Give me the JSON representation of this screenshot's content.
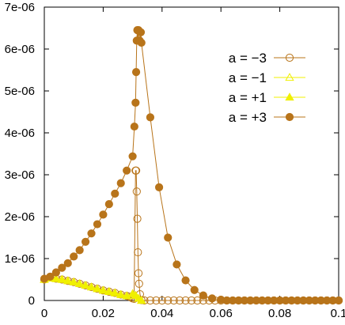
{
  "chart_data": {
    "type": "line",
    "title": "",
    "xlabel": "",
    "ylabel": "",
    "xlim": [
      0,
      0.1
    ],
    "ylim": [
      0,
      7e-06
    ],
    "xticks": [
      0,
      0.02,
      0.04,
      0.06,
      0.08,
      0.1
    ],
    "xtick_labels": [
      "0",
      "0.02",
      "0.04",
      "0.06",
      "0.08",
      "0.1"
    ],
    "yticks": [
      0,
      1e-06,
      2e-06,
      3e-06,
      4e-06,
      5e-06,
      6e-06,
      7e-06
    ],
    "ytick_labels": [
      "0",
      "1e-06",
      "2e-06",
      "3e-06",
      "4e-06",
      "5e-06",
      "6e-06",
      "7e-06"
    ],
    "grid": false,
    "legend_position": "top-right",
    "colors": {
      "dark": "#b8741a",
      "light": "#f0f000",
      "axis": "#000000"
    },
    "series": [
      {
        "name": "a = −3",
        "marker": "open-circle",
        "color": "#b8741a",
        "x": [
          0.0,
          0.002,
          0.004,
          0.006,
          0.008,
          0.01,
          0.012,
          0.014,
          0.016,
          0.018,
          0.02,
          0.022,
          0.024,
          0.026,
          0.028,
          0.029,
          0.0295,
          0.03,
          0.0305,
          0.031,
          0.0312,
          0.0314,
          0.0316,
          0.0318,
          0.032,
          0.0322,
          0.0325,
          0.033,
          0.034,
          0.036,
          0.038,
          0.04,
          0.042,
          0.044,
          0.046,
          0.048,
          0.05,
          0.052,
          0.054,
          0.056,
          0.058,
          0.06,
          0.062,
          0.064,
          0.066,
          0.068,
          0.07,
          0.072,
          0.074,
          0.076,
          0.078,
          0.08,
          0.082,
          0.084,
          0.086,
          0.088,
          0.09,
          0.092,
          0.094,
          0.096,
          0.098,
          0.1
        ],
        "y": [
          5e-07,
          5.5e-07,
          5.2e-07,
          5e-07,
          4.7e-07,
          4.4e-07,
          4e-07,
          3.6e-07,
          3.2e-07,
          2.8e-07,
          2.4e-07,
          2.1e-07,
          1.8e-07,
          1.4e-07,
          1.1e-07,
          9e-08,
          7e-08,
          5e-08,
          4e-08,
          3.1e-06,
          3.1e-06,
          2.6e-06,
          1.95e-06,
          1.15e-06,
          6.5e-07,
          4e-07,
          1.5e-07,
          1e-08,
          0.0,
          0.0,
          0.0,
          0.0,
          0.0,
          0.0,
          0.0,
          0.0,
          0.0,
          0.0,
          0.0,
          0.0,
          0.0,
          0.0,
          0.0,
          0.0,
          0.0,
          0.0,
          0.0,
          0.0,
          0.0,
          0.0,
          0.0,
          0.0,
          0.0,
          0.0,
          0.0,
          0.0,
          0.0,
          0.0,
          0.0,
          0.0,
          0.0,
          0.0
        ]
      },
      {
        "name": "a = −1",
        "marker": "open-triangle",
        "color": "#f0f000",
        "x": [
          0.0,
          0.002,
          0.004,
          0.006,
          0.008,
          0.01,
          0.012,
          0.014,
          0.016,
          0.018,
          0.02,
          0.022,
          0.024,
          0.026,
          0.028,
          0.03,
          0.031,
          0.032,
          0.033
        ],
        "y": [
          5e-07,
          5.3e-07,
          5.2e-07,
          5e-07,
          4.7e-07,
          4.4e-07,
          4e-07,
          3.6e-07,
          3.2e-07,
          2.8e-07,
          2.4e-07,
          2.1e-07,
          1.8e-07,
          1.4e-07,
          1.1e-07,
          1.6e-07,
          1.2e-07,
          5e-08,
          0.0
        ]
      },
      {
        "name": "a = +1",
        "marker": "filled-triangle",
        "color": "#f0f000",
        "x": [
          0.0,
          0.002,
          0.004,
          0.006,
          0.008,
          0.01,
          0.012,
          0.014,
          0.016,
          0.018,
          0.02,
          0.022,
          0.024,
          0.026,
          0.028,
          0.03,
          0.031,
          0.032,
          0.033
        ],
        "y": [
          5e-07,
          5.3e-07,
          5.2e-07,
          5e-07,
          4.7e-07,
          4.4e-07,
          4e-07,
          3.6e-07,
          3.2e-07,
          2.8e-07,
          2.4e-07,
          2.1e-07,
          1.8e-07,
          1.4e-07,
          1.1e-07,
          1.6e-07,
          1.2e-07,
          5e-08,
          0.0
        ]
      },
      {
        "name": "a = +3",
        "marker": "filled-circle",
        "color": "#b8741a",
        "x": [
          0.0,
          0.002,
          0.004,
          0.006,
          0.008,
          0.01,
          0.012,
          0.014,
          0.016,
          0.018,
          0.02,
          0.022,
          0.024,
          0.026,
          0.028,
          0.03,
          0.0306,
          0.031,
          0.0312,
          0.0314,
          0.0316,
          0.0318,
          0.032,
          0.0324,
          0.0328,
          0.033,
          0.036,
          0.039,
          0.042,
          0.045,
          0.048,
          0.051,
          0.054,
          0.057,
          0.06,
          0.062,
          0.064,
          0.066,
          0.068,
          0.07,
          0.072,
          0.074,
          0.076,
          0.078,
          0.08,
          0.082,
          0.084,
          0.086,
          0.088,
          0.09,
          0.092,
          0.094,
          0.096,
          0.098,
          0.1
        ],
        "y": [
          5.2e-07,
          5.7e-07,
          6.7e-07,
          7.8e-07,
          8.9e-07,
          1.05e-06,
          1.2e-06,
          1.4e-06,
          1.6e-06,
          1.82e-06,
          2.05e-06,
          2.3e-06,
          2.55e-06,
          2.8e-06,
          3.1e-06,
          3.44e-06,
          4.15e-06,
          4.72e-06,
          5.45e-06,
          6.2e-06,
          6.45e-06,
          6.2e-06,
          6.45e-06,
          6.2e-06,
          6.4e-06,
          6.15e-06,
          4.37e-06,
          2.7e-06,
          1.5e-06,
          8.6e-07,
          4.8e-07,
          2.5e-07,
          1.2e-07,
          5e-08,
          2e-08,
          0.0,
          0.0,
          0.0,
          0.0,
          0.0,
          0.0,
          0.0,
          0.0,
          0.0,
          0.0,
          0.0,
          0.0,
          0.0,
          0.0,
          0.0,
          0.0,
          0.0,
          0.0,
          0.0,
          0.0
        ]
      }
    ]
  }
}
